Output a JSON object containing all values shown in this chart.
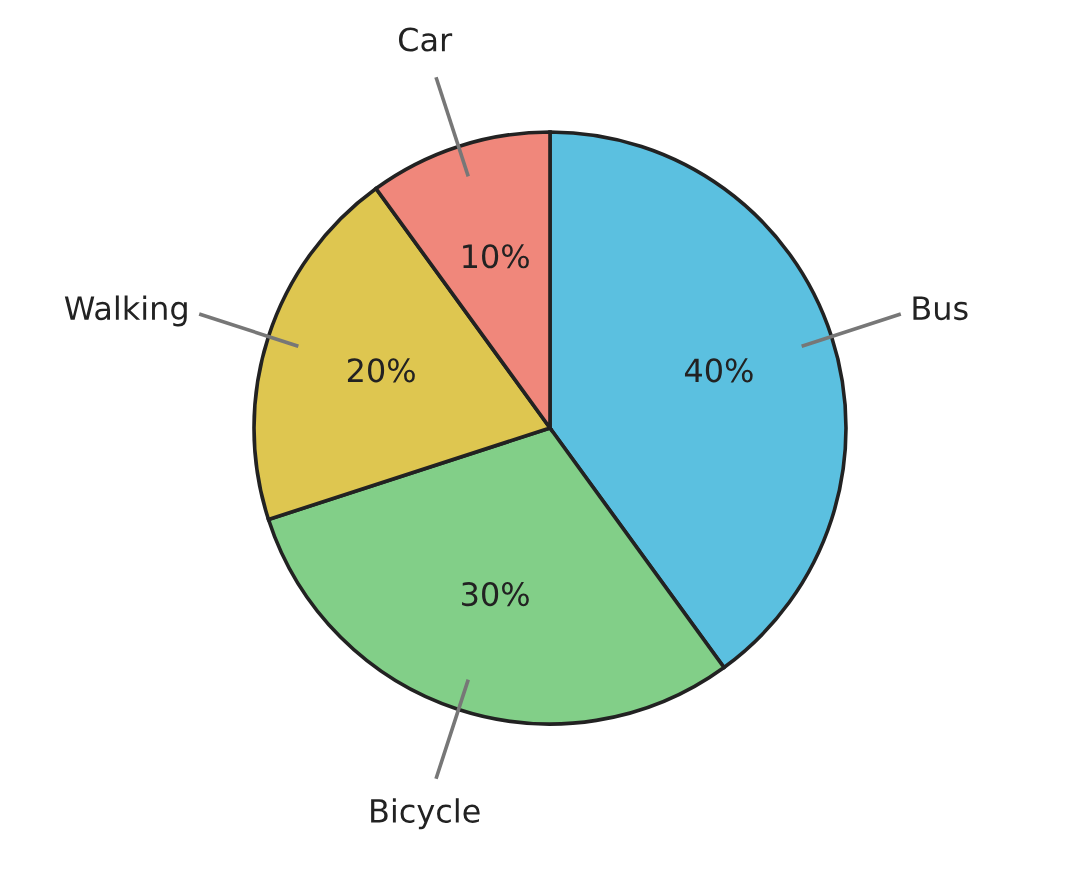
{
  "chart_data": {
    "type": "pie",
    "categories": [
      "Bus",
      "Bicycle",
      "Walking",
      "Car"
    ],
    "values": [
      40,
      30,
      20,
      10
    ],
    "colors": [
      "#5bc0e0",
      "#82cf88",
      "#dec650",
      "#f0877b"
    ],
    "value_labels": [
      "40%",
      "30%",
      "20%",
      "10%"
    ]
  }
}
